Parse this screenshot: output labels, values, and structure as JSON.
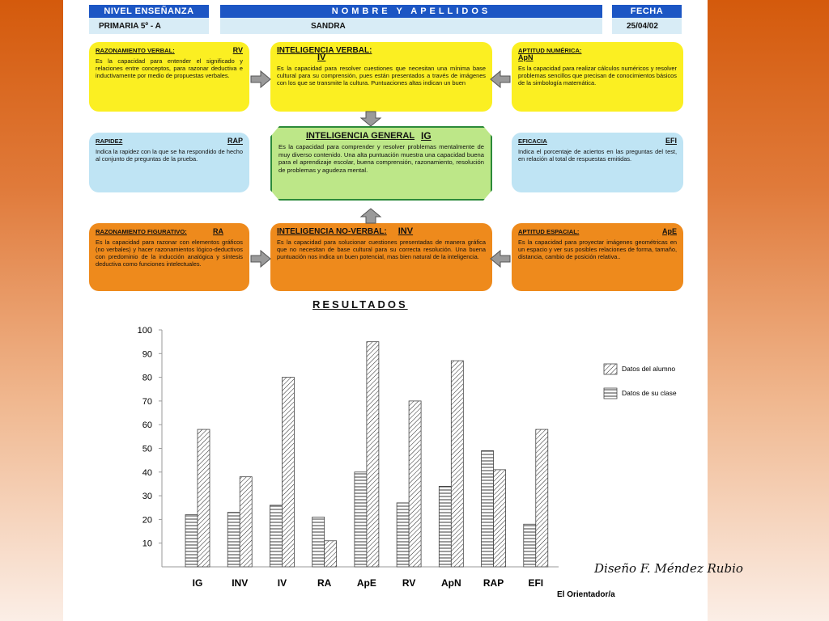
{
  "header": {
    "nivel_label": "NIVEL ENSEÑANZA",
    "nombre_label": "NOMBRE Y APELLIDOS",
    "fecha_label": "FECHA",
    "nivel_value": "PRIMARIA 5º - A",
    "nombre_value": "SANDRA",
    "fecha_value": "25/04/02"
  },
  "boxes": {
    "rv": {
      "title": "RAZONAMIENTO VERBAL:",
      "abbr": "RV",
      "desc": "Es la capacidad para entender el significado y relaciones entre conceptos, para razonar deductiva e inductivamente por medio de propuestas verbales."
    },
    "iv": {
      "title": "INTELIGENCIA VERBAL:",
      "abbr": "IV",
      "desc": "Es la capacidad para resolver cuestiones que necesitan una mínima base cultural para su comprensión, pues están presentados a través de imágenes con los que se transmite la cultura. Puntuaciones altas indican un buen"
    },
    "apn": {
      "title": "APTITUD NUMÉRICA:",
      "abbr": "ApN",
      "desc": "Es la capacidad para realizar cálculos numéricos y resolver problemas sencillos que precisan de conocimientos básicos de la simbología matemática."
    },
    "rap": {
      "title": "RAPIDEZ",
      "abbr": "RAP",
      "desc": "Indica la rapidez con la que se ha respondido de hecho al conjunto de preguntas de la prueba."
    },
    "ig": {
      "title": "INTELIGENCIA GENERAL",
      "abbr": "IG",
      "desc": "Es la capacidad para comprender y resolver problemas mentalmente de muy diverso contenido. Una alta puntuación muestra una capacidad buena para el aprendizaje escolar, buena comprensión, razonamiento, resolución de problemas y agudeza mental."
    },
    "efi": {
      "title": "EFICACIA",
      "abbr": "EFI",
      "desc": "Indica el porcentaje de aciertos en las preguntas del test, en relación al total de respuestas emitidas."
    },
    "ra": {
      "title": "RAZONAMIENTO FIGURATIVO:",
      "abbr": "RA",
      "desc": "Es la capacidad para razonar con elementos gráficos (no verbales) y hacer razonamientos lógico-deductivos con predominio de la inducción analógica y síntesis deductiva como funciones intelectuales."
    },
    "inv": {
      "title": "INTELIGENCIA NO-VERBAL:",
      "abbr": "INV",
      "desc": "Es la capacidad para solucionar cuestiones presentadas de manera gráfica que no necesitan de base cultural para su correcta resolución. Una buena puntuación nos indica un buen potencial, mas bien natural de la inteligencia."
    },
    "ape": {
      "title": "APTITUD ESPACIAL:",
      "abbr": "ApE",
      "desc": "Es la capacidad para proyectar imágenes geométricas en un espacio y ver sus posibles relaciones de forma, tamaño, distancia, cambio de posición relativa.."
    }
  },
  "results_title": "RESULTADOS",
  "footer": {
    "orientador": "El Orientador/a",
    "credit": "Diseño F. Méndez Rubio"
  },
  "chart_data": {
    "type": "bar",
    "title": "RESULTADOS",
    "categories": [
      "IG",
      "INV",
      "IV",
      "RA",
      "ApE",
      "RV",
      "ApN",
      "RAP",
      "EFI"
    ],
    "series": [
      {
        "name": "Datos de su clase",
        "pattern": "horizontal-lines",
        "values": [
          22,
          23,
          26,
          21,
          40,
          27,
          34,
          49,
          18
        ]
      },
      {
        "name": "Datos del alumno",
        "pattern": "diagonal-hatch",
        "values": [
          58,
          38,
          80,
          11,
          95,
          70,
          87,
          41,
          58
        ]
      }
    ],
    "ylim": [
      0,
      100
    ],
    "yticks": [
      10,
      20,
      30,
      40,
      50,
      60,
      70,
      80,
      90,
      100
    ],
    "legend": "right",
    "grid": false
  },
  "colors": {
    "header_blue": "#1c56c4",
    "yellow": "#fbef22",
    "blue": "#bfe4f4",
    "orange": "#ee8a1c",
    "green": "#bde788"
  }
}
